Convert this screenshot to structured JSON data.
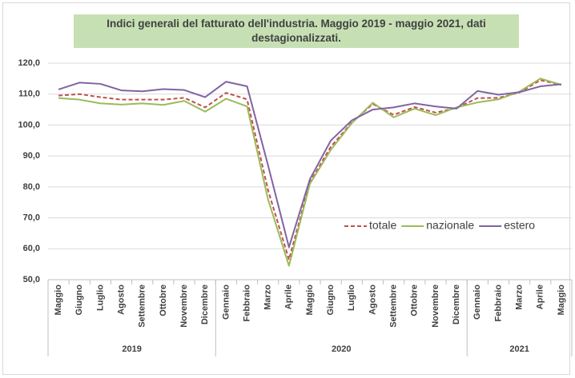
{
  "chart_data": {
    "type": "line",
    "title": "Indici generali del fatturato dell'industria. Maggio 2019 - maggio 2021, dati destagionalizzati.",
    "categories": [
      "Maggio",
      "Giugno",
      "Luglio",
      "Agosto",
      "Settembre",
      "Ottobre",
      "Novembre",
      "Dicembre",
      "Gennaio",
      "Febbraio",
      "Marzo",
      "Aprile",
      "Maggio",
      "Giugno",
      "Luglio",
      "Agosto",
      "Settembre",
      "Ottobre",
      "Novembre",
      "Dicembre",
      "Gennaio",
      "Febbraio",
      "Marzo",
      "Aprile",
      "Maggio"
    ],
    "groups": [
      {
        "label": "2019",
        "count": 8
      },
      {
        "label": "2020",
        "count": 12
      },
      {
        "label": "2021",
        "count": 5
      }
    ],
    "series": [
      {
        "name": "totale",
        "color": "#c0504d",
        "dashed": true,
        "values": [
          109.5,
          110,
          109,
          108.2,
          108.2,
          108.2,
          108.8,
          105.7,
          110.4,
          108.3,
          79,
          56.5,
          81.5,
          93,
          100.8,
          106.8,
          103.3,
          105.8,
          104,
          105.5,
          108.7,
          108.8,
          110.5,
          114.5,
          113
        ]
      },
      {
        "name": "nazionale",
        "color": "#9bbb59",
        "dashed": false,
        "values": [
          108.7,
          108.2,
          107,
          106.6,
          107,
          106.5,
          107.8,
          104.3,
          108.5,
          106,
          76,
          54.5,
          81,
          92,
          100.6,
          107.2,
          102.5,
          105.3,
          103.2,
          105.7,
          107.3,
          108.3,
          110.8,
          115,
          113
        ]
      },
      {
        "name": "estero",
        "color": "#8064a2",
        "dashed": false,
        "values": [
          111.5,
          113.7,
          113.3,
          111.2,
          110.9,
          111.6,
          111.3,
          109,
          114,
          112.5,
          87,
          60.5,
          82.5,
          95,
          101.5,
          105,
          105.7,
          107,
          106,
          105.3,
          111,
          109.8,
          110.6,
          112.5,
          113.2
        ]
      }
    ],
    "ylim": [
      50,
      120
    ],
    "yticks": [
      {
        "value": 50,
        "label": "50,0"
      },
      {
        "value": 60,
        "label": "60,0"
      },
      {
        "value": 70,
        "label": "70,0"
      },
      {
        "value": 80,
        "label": "80,0"
      },
      {
        "value": 90,
        "label": "90,0"
      },
      {
        "value": 100,
        "label": "100,0"
      },
      {
        "value": 110,
        "label": "110,0"
      },
      {
        "value": 120,
        "label": "120,0"
      }
    ],
    "grid": true,
    "legend": "right"
  }
}
